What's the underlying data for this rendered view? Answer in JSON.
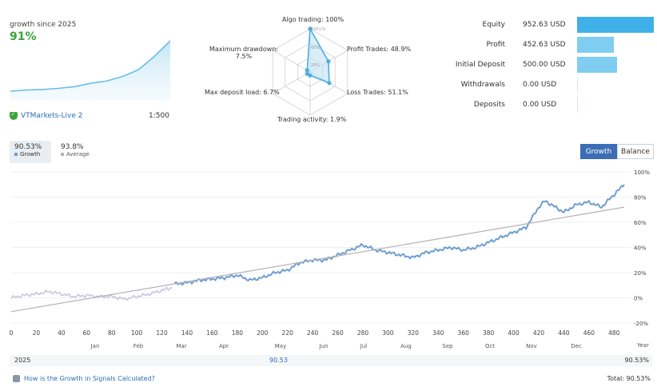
{
  "summary": {
    "growth_label": "growth since 2025",
    "growth_value": "91%",
    "account_name": "VTMarkets-Live 2",
    "leverage": "1:500"
  },
  "radar": {
    "algo_trading": "Algo trading: 100%",
    "profit_trades": "Profit Trades: 48.9%",
    "loss_trades": "Loss Trades: 51.1%",
    "trading_activity": "Trading activity: 1.9%",
    "max_deposit_load": "Max deposit load: 6.7%",
    "max_drawdown_line1": "Maximum drawdown:",
    "max_drawdown_line2": "7.5%",
    "scale_100": "100+%",
    "scale_60": "60%",
    "scale_20": "20%",
    "values": [
      100,
      48.9,
      51.1,
      1.9,
      6.7,
      7.5
    ]
  },
  "financials": {
    "items": [
      {
        "label": "Equity",
        "value": "952.63 USD",
        "amount": 952.63
      },
      {
        "label": "Profit",
        "value": "452.63 USD",
        "amount": 452.63
      },
      {
        "label": "Initial Deposit",
        "value": "500.00 USD",
        "amount": 500.0
      },
      {
        "label": "Withdrawals",
        "value": "0.00 USD",
        "amount": 0
      },
      {
        "label": "Deposits",
        "value": "0.00 USD",
        "amount": 0
      }
    ]
  },
  "stats": {
    "growth_value": "90.53%",
    "growth_label": "Growth",
    "average_value": "93.8%",
    "average_label": "Average"
  },
  "tabs": {
    "growth": "Growth",
    "balance": "Balance"
  },
  "colors": {
    "growth_line": "#6f9fd1",
    "pre_period_line": "#c9c3e6",
    "trend_line": "#b3b3b3",
    "equity_bar": "#3fb0e8",
    "other_bar": "#7fcdf0",
    "accent_green": "#3aa53a"
  },
  "chart_data": {
    "type": "line",
    "x_ticks": [
      0,
      20,
      40,
      60,
      80,
      100,
      120,
      140,
      160,
      180,
      200,
      220,
      240,
      260,
      280,
      300,
      320,
      340,
      360,
      380,
      400,
      420,
      440,
      460,
      480
    ],
    "y_ticks": [
      "100%",
      "80%",
      "60%",
      "40%",
      "20%",
      "0%",
      "-20%"
    ],
    "ylim": [
      -20,
      100
    ],
    "xlim": [
      0,
      490
    ],
    "xlabel": "Year",
    "months": [
      "Jan",
      "Feb",
      "Mar",
      "Apr",
      "May",
      "Jun",
      "Jul",
      "Aug",
      "Sep",
      "Oct",
      "Nov",
      "Dec"
    ],
    "month_x": [
      66,
      100,
      134,
      164,
      208,
      250,
      290,
      336,
      380,
      424,
      466,
      500
    ],
    "series": [
      {
        "kind": "pre-period",
        "x": [
          0,
          10,
          20,
          30,
          40,
          50,
          60,
          70,
          80,
          90,
          100,
          110,
          120,
          128
        ],
        "y": [
          0,
          2,
          3,
          5,
          3,
          1,
          2,
          1,
          1,
          -1,
          1,
          3,
          6,
          8
        ]
      },
      {
        "kind": "growth",
        "x": [
          130,
          140,
          150,
          160,
          170,
          180,
          190,
          200,
          210,
          220,
          230,
          240,
          250,
          260,
          270,
          280,
          290,
          300,
          310,
          320,
          330,
          340,
          350,
          360,
          370,
          380,
          390,
          400,
          410,
          420,
          425,
          430,
          440,
          450,
          460,
          470,
          480,
          488
        ],
        "y": [
          11,
          12,
          14,
          15,
          16,
          18,
          14,
          16,
          20,
          22,
          28,
          30,
          30,
          34,
          38,
          42,
          38,
          36,
          34,
          32,
          36,
          38,
          40,
          38,
          40,
          44,
          48,
          52,
          56,
          72,
          77,
          74,
          68,
          74,
          76,
          72,
          82,
          90
        ]
      },
      {
        "kind": "trend",
        "x": [
          0,
          488
        ],
        "y": [
          -11,
          72
        ]
      }
    ],
    "mini": {
      "x": [
        0,
        20,
        40,
        60,
        80,
        100,
        120,
        140,
        160,
        180,
        200
      ],
      "y": [
        0,
        2,
        3,
        5,
        8,
        14,
        18,
        26,
        38,
        62,
        90
      ]
    }
  },
  "year_row": {
    "year": "2025",
    "month_value": "90.53",
    "year_total": "90.53%"
  },
  "footer": {
    "link": "How is the Growth in Signals Calculated?",
    "total": "Total: 90.53%"
  }
}
